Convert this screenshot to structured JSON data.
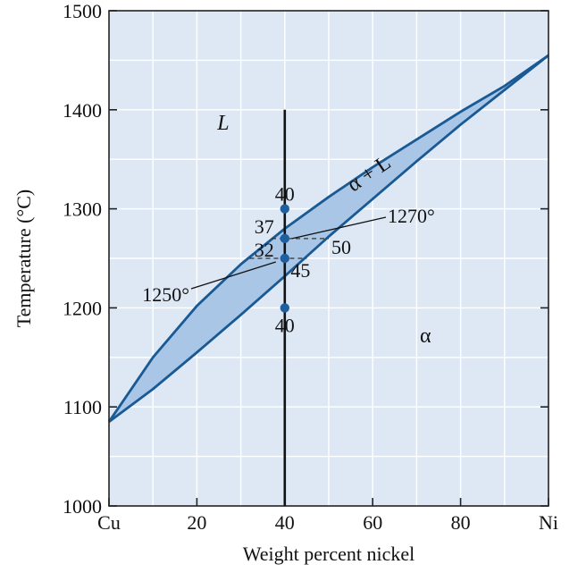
{
  "chart_data": {
    "type": "phase-diagram",
    "xlabel": "Weight percent nickel",
    "ylabel": "Temperature (°C)",
    "xlim": [
      0,
      100
    ],
    "ylim": [
      1000,
      1500
    ],
    "x_ticks": [
      {
        "value": 0,
        "label": "Cu"
      },
      {
        "value": 20,
        "label": "20"
      },
      {
        "value": 40,
        "label": "40"
      },
      {
        "value": 60,
        "label": "60"
      },
      {
        "value": 80,
        "label": "80"
      },
      {
        "value": 100,
        "label": "Ni"
      }
    ],
    "y_ticks": [
      {
        "value": 1000,
        "label": "1000"
      },
      {
        "value": 1100,
        "label": "1100"
      },
      {
        "value": 1200,
        "label": "1200"
      },
      {
        "value": 1300,
        "label": "1300"
      },
      {
        "value": 1400,
        "label": "1400"
      },
      {
        "value": 1500,
        "label": "1500"
      }
    ],
    "grid": true,
    "colors": {
      "background": "#dde8f4",
      "lens_fill": "#a9c6e6",
      "curve": "#1a5a94",
      "marker": "#1f5fa0",
      "isopleth": "#111111"
    },
    "liquidus": [
      {
        "x": 0,
        "y": 1085
      },
      {
        "x": 10,
        "y": 1150
      },
      {
        "x": 20,
        "y": 1202
      },
      {
        "x": 30,
        "y": 1244
      },
      {
        "x": 40,
        "y": 1280
      },
      {
        "x": 50,
        "y": 1312
      },
      {
        "x": 60,
        "y": 1342
      },
      {
        "x": 70,
        "y": 1370
      },
      {
        "x": 80,
        "y": 1398
      },
      {
        "x": 90,
        "y": 1424
      },
      {
        "x": 100,
        "y": 1455
      }
    ],
    "solidus": [
      {
        "x": 0,
        "y": 1085
      },
      {
        "x": 10,
        "y": 1118
      },
      {
        "x": 20,
        "y": 1155
      },
      {
        "x": 30,
        "y": 1193
      },
      {
        "x": 40,
        "y": 1232
      },
      {
        "x": 50,
        "y": 1272
      },
      {
        "x": 60,
        "y": 1310
      },
      {
        "x": 70,
        "y": 1348
      },
      {
        "x": 80,
        "y": 1385
      },
      {
        "x": 90,
        "y": 1420
      },
      {
        "x": 100,
        "y": 1455
      }
    ],
    "isopleth": {
      "x": 40,
      "y_from": 1000,
      "y_to": 1400
    },
    "points": [
      {
        "x": 40,
        "y": 1300,
        "label": "40"
      },
      {
        "x": 40,
        "y": 1270
      },
      {
        "x": 40,
        "y": 1250
      },
      {
        "x": 40,
        "y": 1200,
        "label": "40"
      }
    ],
    "tie_lines": [
      {
        "temp": 1270,
        "x_from": 37,
        "x_to": 50,
        "left_label": "37",
        "right_label": "50",
        "temp_label": "1270°"
      },
      {
        "temp": 1250,
        "x_from": 32,
        "x_to": 45,
        "left_label": "32",
        "right_label": "45",
        "temp_label": "1250°"
      }
    ],
    "region_labels": [
      {
        "id": "liquid",
        "text": "L"
      },
      {
        "id": "alpha",
        "text": "α"
      },
      {
        "id": "two-phase",
        "text": "α + L"
      }
    ]
  }
}
